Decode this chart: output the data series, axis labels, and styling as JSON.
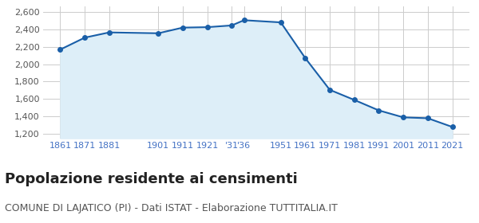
{
  "years": [
    1861,
    1871,
    1881,
    1901,
    1911,
    1921,
    1931,
    1936,
    1951,
    1961,
    1971,
    1981,
    1991,
    2001,
    2011,
    2021
  ],
  "population": [
    2168,
    2305,
    2365,
    2355,
    2420,
    2425,
    2445,
    2505,
    2480,
    2070,
    1706,
    1590,
    1470,
    1390,
    1380,
    1280
  ],
  "x_tick_labels": [
    "1861",
    "1871",
    "1881",
    "1901",
    "1911",
    "1921",
    "'31",
    "'36",
    "1951",
    "1961",
    "1971",
    "1981",
    "1991",
    "2001",
    "2011",
    "2021"
  ],
  "line_color": "#1a5fa8",
  "fill_color": "#ddeef8",
  "marker_color": "#1a5fa8",
  "background_color": "#ffffff",
  "grid_color": "#cccccc",
  "title": "Popolazione residente ai censimenti",
  "subtitle": "COMUNE DI LAJATICO (PI) - Dati ISTAT - Elaborazione TUTTITALIA.IT",
  "title_fontsize": 13,
  "subtitle_fontsize": 9,
  "ylabel_ticks": [
    1200,
    1400,
    1600,
    1800,
    2000,
    2200,
    2400,
    2600
  ],
  "ylim": [
    1150,
    2660
  ],
  "xlim": [
    1854,
    2028
  ],
  "axis_tick_color": "#4472c4",
  "ytick_color": "#555555"
}
